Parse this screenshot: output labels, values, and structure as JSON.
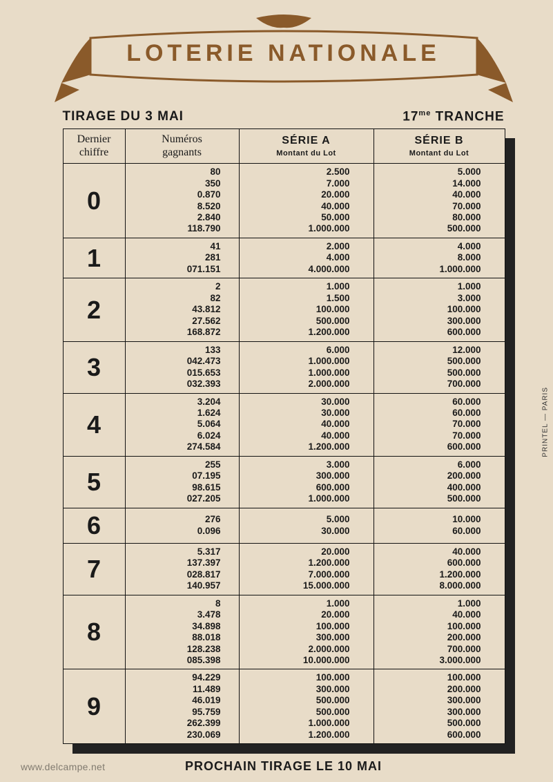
{
  "colors": {
    "background": "#e8dcc8",
    "ink": "#1a1a1a",
    "banner": "#8a5a2a",
    "shadow": "#222222"
  },
  "banner": {
    "title": "LOTERIE  NATIONALE"
  },
  "subheader": {
    "left": "TIRAGE DU 3 MAI",
    "right_prefix": "17",
    "right_sup": "me",
    "right_suffix": " TRANCHE"
  },
  "columns": {
    "digit": "Dernier\nchiffre",
    "numbers": "Numéros\ngagnants",
    "serieA_title": "SÉRIE A",
    "serieA_sub": "Montant du Lot",
    "serieB_title": "SÉRIE B",
    "serieB_sub": "Montant du Lot"
  },
  "rows": [
    {
      "digit": "0",
      "numbers": [
        "80",
        "350",
        "0.870",
        "8.520",
        "2.840",
        "118.790"
      ],
      "serieA": [
        "2.500",
        "7.000",
        "20.000",
        "40.000",
        "50.000",
        "1.000.000"
      ],
      "serieB": [
        "5.000",
        "14.000",
        "40.000",
        "70.000",
        "80.000",
        "500.000"
      ]
    },
    {
      "digit": "1",
      "numbers": [
        "41",
        "281",
        "071.151"
      ],
      "serieA": [
        "2.000",
        "4.000",
        "4.000.000"
      ],
      "serieB": [
        "4.000",
        "8.000",
        "1.000.000"
      ]
    },
    {
      "digit": "2",
      "numbers": [
        "2",
        "82",
        "43.812",
        "27.562",
        "168.872"
      ],
      "serieA": [
        "1.000",
        "1.500",
        "100.000",
        "500.000",
        "1.200.000"
      ],
      "serieB": [
        "1.000",
        "3.000",
        "100.000",
        "300.000",
        "600.000"
      ]
    },
    {
      "digit": "3",
      "numbers": [
        "133",
        "042.473",
        "015.653",
        "032.393"
      ],
      "serieA": [
        "6.000",
        "1.000.000",
        "1.000.000",
        "2.000.000"
      ],
      "serieB": [
        "12.000",
        "500.000",
        "500.000",
        "700.000"
      ]
    },
    {
      "digit": "4",
      "numbers": [
        "3.204",
        "1.624",
        "5.064",
        "6.024",
        "274.584"
      ],
      "serieA": [
        "30.000",
        "30.000",
        "40.000",
        "40.000",
        "1.200.000"
      ],
      "serieB": [
        "60.000",
        "60.000",
        "70.000",
        "70.000",
        "600.000"
      ]
    },
    {
      "digit": "5",
      "numbers": [
        "255",
        "07.195",
        "98.615",
        "027.205"
      ],
      "serieA": [
        "3.000",
        "300.000",
        "600.000",
        "1.000.000"
      ],
      "serieB": [
        "6.000",
        "200.000",
        "400.000",
        "500.000"
      ]
    },
    {
      "digit": "6",
      "numbers": [
        "276",
        "0.096"
      ],
      "serieA": [
        "5.000",
        "30.000"
      ],
      "serieB": [
        "10.000",
        "60.000"
      ]
    },
    {
      "digit": "7",
      "numbers": [
        "5.317",
        "137.397",
        "028.817",
        "140.957"
      ],
      "serieA": [
        "20.000",
        "1.200.000",
        "7.000.000",
        "15.000.000"
      ],
      "serieB": [
        "40.000",
        "600.000",
        "1.200.000",
        "8.000.000"
      ]
    },
    {
      "digit": "8",
      "numbers": [
        "8",
        "3.478",
        "34.898",
        "88.018",
        "128.238",
        "085.398"
      ],
      "serieA": [
        "1.000",
        "20.000",
        "100.000",
        "300.000",
        "2.000.000",
        "10.000.000"
      ],
      "serieB": [
        "1.000",
        "40.000",
        "100.000",
        "200.000",
        "700.000",
        "3.000.000"
      ]
    },
    {
      "digit": "9",
      "numbers": [
        "94.229",
        "11.489",
        "46.019",
        "95.759",
        "262.399",
        "230.069"
      ],
      "serieA": [
        "100.000",
        "300.000",
        "500.000",
        "500.000",
        "1.000.000",
        "1.200.000"
      ],
      "serieB": [
        "100.000",
        "200.000",
        "300.000",
        "300.000",
        "500.000",
        "600.000"
      ]
    }
  ],
  "footer": "PROCHAIN TIRAGE LE 10 MAI",
  "printer": "PRINTEL — PARIS",
  "watermark": "www.delcampe.net"
}
